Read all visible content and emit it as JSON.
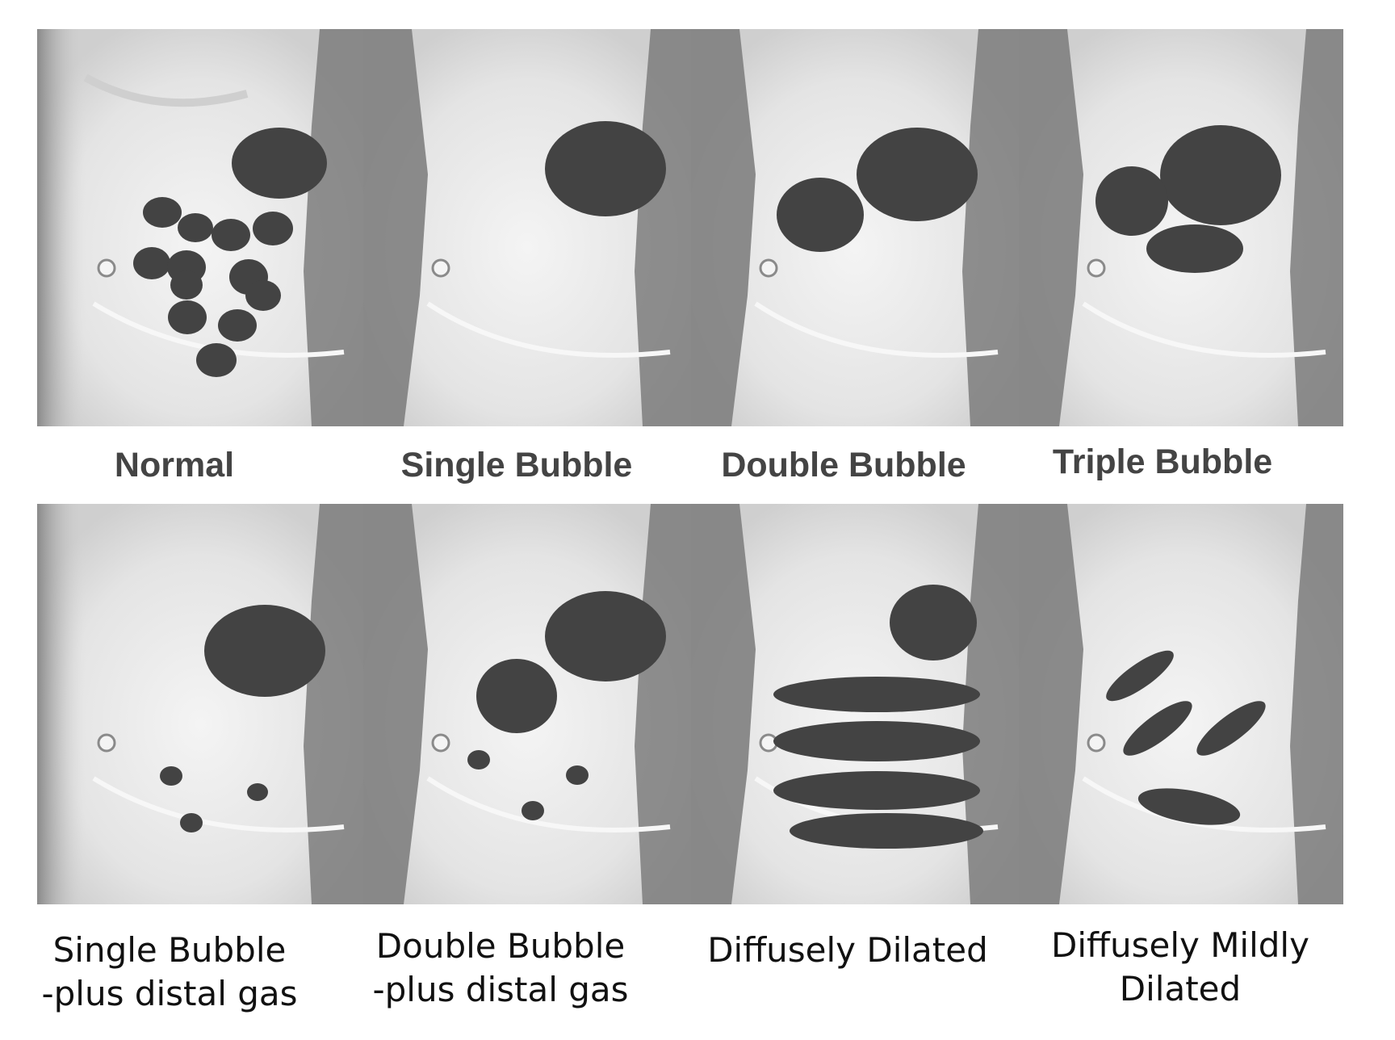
{
  "labels": {
    "normal": "Normal",
    "single_bubble": "Single Bubble",
    "double_bubble": "Double Bubble",
    "triple_bubble": "Triple Bubble",
    "single_bubble_distal": {
      "line1": "Single Bubble",
      "line2": "-plus distal gas"
    },
    "double_bubble_distal": {
      "line1": "Double Bubble",
      "line2": "-plus distal gas"
    },
    "diffusely_dilated": "Diffusely Dilated",
    "diffusely_mildly_dilated": {
      "line1": "Diffusely Mildly",
      "line2": "Dilated"
    }
  },
  "colors": {
    "gas": "#434343",
    "xray_background": "#e9e9e9",
    "xray_dark": "#7a7a7a"
  }
}
